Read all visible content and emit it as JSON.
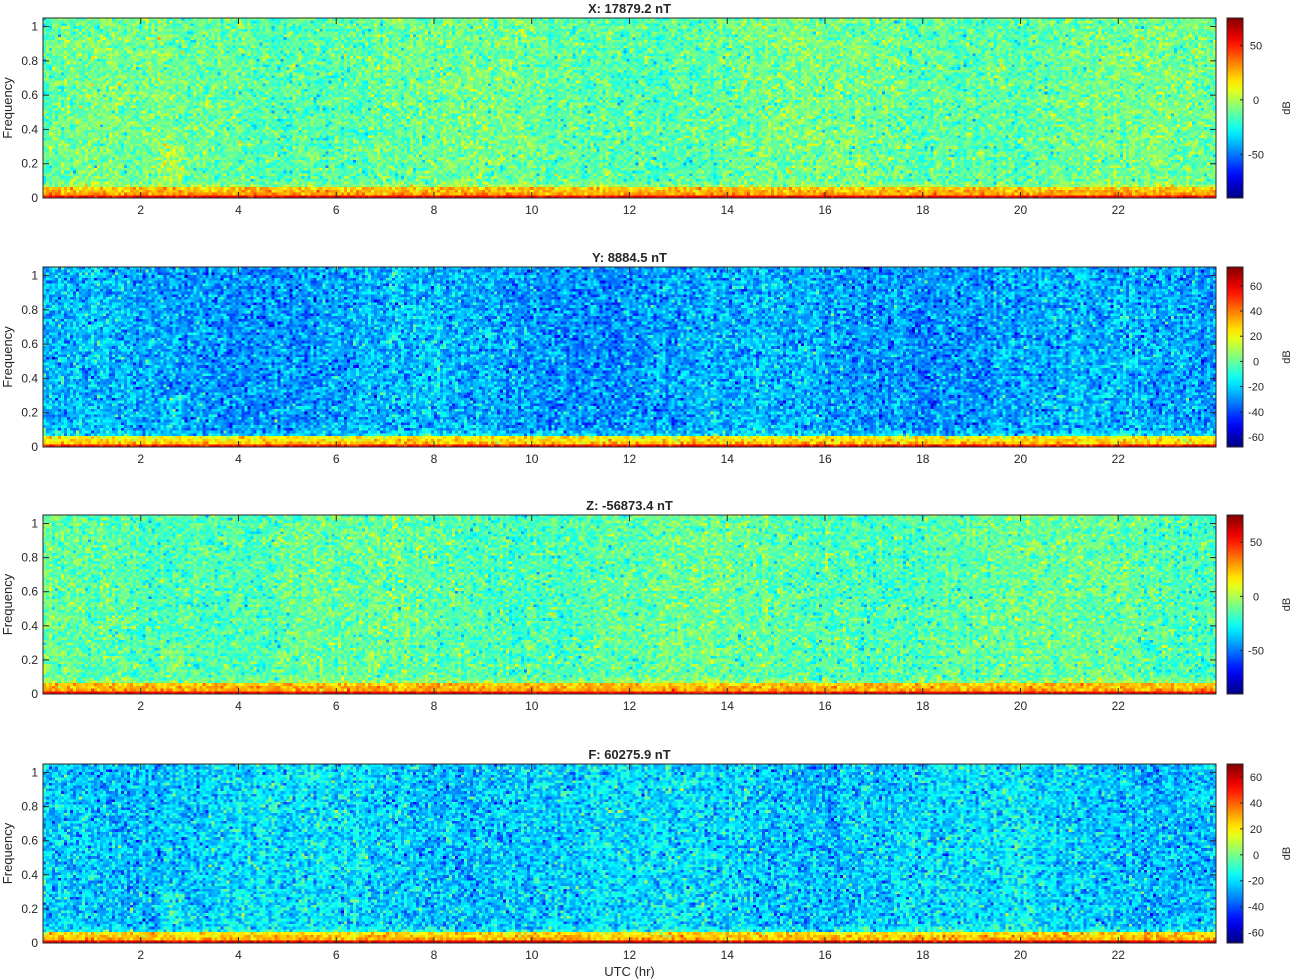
{
  "chart_data": [
    {
      "type": "heatmap",
      "title": "X: 17879.2 nT",
      "ylabel": "Frequency",
      "xlabel": "",
      "xlim": [
        0,
        24
      ],
      "ylim": [
        0,
        1.05
      ],
      "x_ticks": [
        "2",
        "4",
        "6",
        "8",
        "10",
        "12",
        "14",
        "16",
        "18",
        "20",
        "22"
      ],
      "y_ticks": [
        "0",
        "0.2",
        "0.4",
        "0.6",
        "0.8",
        "1"
      ],
      "colorbar": {
        "label": "dB",
        "clim": [
          -90,
          75
        ],
        "ticks": [
          "50",
          "0",
          "-50"
        ],
        "tick_values": [
          50,
          0,
          -50
        ]
      },
      "colormap": "jet",
      "background_level_db": -12
    },
    {
      "type": "heatmap",
      "title": "Y: 8884.5 nT",
      "ylabel": "Frequency",
      "xlabel": "",
      "xlim": [
        0,
        24
      ],
      "ylim": [
        0,
        1.05
      ],
      "x_ticks": [
        "2",
        "4",
        "6",
        "8",
        "10",
        "12",
        "14",
        "16",
        "18",
        "20",
        "22"
      ],
      "y_ticks": [
        "0",
        "0.2",
        "0.4",
        "0.6",
        "0.8",
        "1"
      ],
      "colorbar": {
        "label": "dB",
        "clim": [
          -68,
          75
        ],
        "ticks": [
          "60",
          "40",
          "20",
          "0",
          "-20",
          "-40",
          "-60"
        ],
        "tick_values": [
          60,
          40,
          20,
          0,
          -20,
          -40,
          -60
        ]
      },
      "colormap": "jet",
      "background_level_db": -27
    },
    {
      "type": "heatmap",
      "title": "Z: -56873.4 nT",
      "ylabel": "Frequency",
      "xlabel": "",
      "xlim": [
        0,
        24
      ],
      "ylim": [
        0,
        1.05
      ],
      "x_ticks": [
        "2",
        "4",
        "6",
        "8",
        "10",
        "12",
        "14",
        "16",
        "18",
        "20",
        "22"
      ],
      "y_ticks": [
        "0",
        "0.2",
        "0.4",
        "0.6",
        "0.8",
        "1"
      ],
      "colorbar": {
        "label": "dB",
        "clim": [
          -90,
          75
        ],
        "ticks": [
          "50",
          "0",
          "-50"
        ],
        "tick_values": [
          50,
          0,
          -50
        ]
      },
      "colormap": "jet",
      "background_level_db": -14
    },
    {
      "type": "heatmap",
      "title": "F: 60275.9 nT",
      "ylabel": "Frequency",
      "xlabel": "UTC (hr)",
      "xlim": [
        0,
        24
      ],
      "ylim": [
        0,
        1.05
      ],
      "x_ticks": [
        "2",
        "4",
        "6",
        "8",
        "10",
        "12",
        "14",
        "16",
        "18",
        "20",
        "22"
      ],
      "y_ticks": [
        "0",
        "0.2",
        "0.4",
        "0.6",
        "0.8",
        "1"
      ],
      "colorbar": {
        "label": "dB",
        "clim": [
          -68,
          70
        ],
        "ticks": [
          "60",
          "40",
          "20",
          "0",
          "-20",
          "-40",
          "-60"
        ],
        "tick_values": [
          60,
          40,
          20,
          0,
          -20,
          -40,
          -60
        ]
      },
      "colormap": "jet",
      "background_level_db": -22
    }
  ]
}
